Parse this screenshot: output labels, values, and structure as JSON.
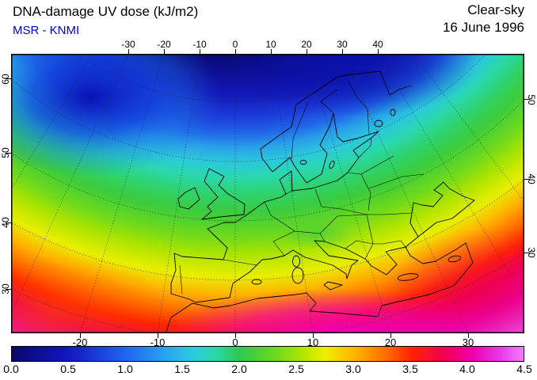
{
  "header": {
    "title": "DNA-damage UV dose (kJ/m2)",
    "source": "MSR - KNMI",
    "condition": "Clear-sky",
    "date": "16 June 1996"
  },
  "map": {
    "top_ticks": [
      "-30",
      "-20",
      "-10",
      "0",
      "10",
      "20",
      "30",
      "40"
    ],
    "bottom_ticks": [
      "-20",
      "-10",
      "0",
      "10",
      "20",
      "30"
    ],
    "left_ticks": [
      "60",
      "50",
      "40",
      "30"
    ],
    "right_ticks": [
      "50",
      "40",
      "30"
    ]
  },
  "colorbar": {
    "labels": [
      "0.0",
      "0.5",
      "1.0",
      "1.5",
      "2.0",
      "2.5",
      "3.0",
      "3.5",
      "4.0",
      "4.5"
    ]
  },
  "chart_data": {
    "type": "heatmap",
    "title": "DNA-damage UV dose (kJ/m2)",
    "source": "MSR - KNMI",
    "condition": "Clear-sky",
    "date": "16 June 1996",
    "units": "kJ/m2",
    "region": "Europe and surrounding seas",
    "lon_gridlines_deg": [
      -40,
      -30,
      -20,
      -10,
      0,
      10,
      20,
      30,
      40,
      50
    ],
    "lat_gridlines_deg": [
      30,
      40,
      50,
      60,
      70
    ],
    "scale": {
      "min": 0.0,
      "max": 4.5,
      "tick_step": 0.5,
      "colors": [
        {
          "value": 0.0,
          "hex": "#08086E"
        },
        {
          "value": 0.5,
          "hex": "#1216C0"
        },
        {
          "value": 1.0,
          "hex": "#1E64F0"
        },
        {
          "value": 1.5,
          "hex": "#2CCCDC"
        },
        {
          "value": 2.0,
          "hex": "#2FC852"
        },
        {
          "value": 2.5,
          "hex": "#B2E600"
        },
        {
          "value": 3.0,
          "hex": "#FFB400"
        },
        {
          "value": 3.5,
          "hex": "#FF2400"
        },
        {
          "value": 4.0,
          "hex": "#EE00AC"
        },
        {
          "value": 4.5,
          "hex": "#F27CF8"
        }
      ]
    },
    "field_samples": [
      {
        "region": "Arctic / north of Scandinavia",
        "approx_value": 0.9
      },
      {
        "region": "NW Atlantic dark-blue low (upper left)",
        "approx_value": 0.6
      },
      {
        "region": "Scandinavia ~60N",
        "approx_value": 1.5
      },
      {
        "region": "British Isles",
        "approx_value": 1.8
      },
      {
        "region": "Central Europe ~50N",
        "approx_value": 2.1
      },
      {
        "region": "France / Alps ~46N",
        "approx_value": 2.4
      },
      {
        "region": "Iberia / Italy ~40N",
        "approx_value": 2.9
      },
      {
        "region": "Mediterranean ~36N",
        "approx_value": 3.4
      },
      {
        "region": "North Africa coast ~33N",
        "approx_value": 3.8
      },
      {
        "region": "Southern edge / Sahara ~28N",
        "approx_value": 4.3
      }
    ]
  }
}
